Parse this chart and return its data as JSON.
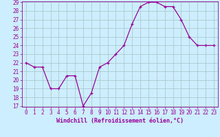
{
  "x": [
    0,
    1,
    2,
    3,
    4,
    5,
    6,
    7,
    8,
    9,
    10,
    11,
    12,
    13,
    14,
    15,
    16,
    17,
    18,
    19,
    20,
    21,
    22,
    23
  ],
  "y": [
    22,
    21.5,
    21.5,
    19,
    19,
    20.5,
    20.5,
    17,
    18.5,
    21.5,
    22,
    23,
    24,
    26.5,
    28.5,
    29,
    29,
    28.5,
    28.5,
    27,
    25,
    24,
    24,
    24
  ],
  "line_color": "#990099",
  "marker": "+",
  "bg_color": "#cceeff",
  "grid_color": "#aacccc",
  "xlabel": "Windchill (Refroidissement éolien,°C)",
  "xlabel_color": "#990099",
  "tick_color": "#990099",
  "axis_color": "#990099",
  "ylim_min": 17,
  "ylim_max": 29,
  "xlim_min": -0.5,
  "xlim_max": 23.5,
  "yticks": [
    17,
    18,
    19,
    20,
    21,
    22,
    23,
    24,
    25,
    26,
    27,
    28,
    29
  ],
  "xticks": [
    0,
    1,
    2,
    3,
    4,
    5,
    6,
    7,
    8,
    9,
    10,
    11,
    12,
    13,
    14,
    15,
    16,
    17,
    18,
    19,
    20,
    21,
    22,
    23
  ],
  "xlabel_fontsize": 6.0,
  "tick_fontsize": 5.5,
  "linewidth": 0.9,
  "markersize": 3.5
}
